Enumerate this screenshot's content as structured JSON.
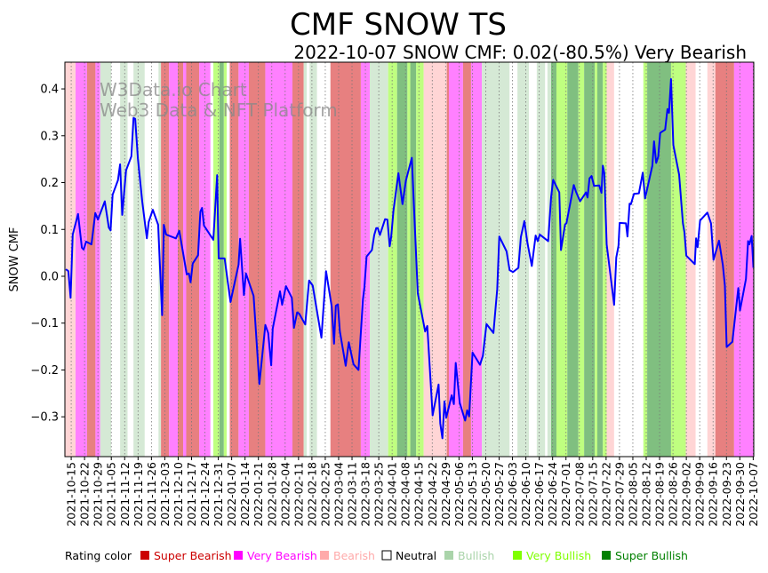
{
  "chart_data": {
    "type": "line",
    "title": "CMF SNOW TS",
    "subtitle": "2022-10-07 SNOW CMF: 0.02(-80.5%) Very Bearish",
    "ylabel": "SNOW CMF",
    "xlabel": "",
    "watermark": [
      "W3Data.io Chart",
      "Web3 Data & NFT Platform"
    ],
    "x_unit": "days since 2021-10-12",
    "xlim": [
      -0.3,
      360.3
    ],
    "ylim": [
      -0.385,
      0.457
    ],
    "yticks": [
      0.4,
      0.3,
      0.2,
      0.1,
      0.0,
      -0.1,
      -0.2,
      -0.3
    ],
    "ytick_labels": [
      "0.4",
      "0.3",
      "0.2",
      "0.1",
      "0.0",
      "−0.1",
      "−0.2",
      "−0.3"
    ],
    "xtick_first_day": 3,
    "xtick_step_days": 7,
    "xtick_labels": [
      "2021-10-15",
      "2021-10-22",
      "2021-10-29",
      "2021-11-05",
      "2021-11-12",
      "2021-11-19",
      "2021-11-26",
      "2021-12-03",
      "2021-12-10",
      "2021-12-17",
      "2021-12-24",
      "2021-12-31",
      "2022-01-07",
      "2022-01-14",
      "2022-01-21",
      "2022-01-28",
      "2022-02-04",
      "2022-02-11",
      "2022-02-18",
      "2022-02-25",
      "2022-03-04",
      "2022-03-11",
      "2022-03-18",
      "2022-03-25",
      "2022-04-01",
      "2022-04-08",
      "2022-04-15",
      "2022-04-22",
      "2022-04-29",
      "2022-05-06",
      "2022-05-13",
      "2022-05-20",
      "2022-05-27",
      "2022-06-03",
      "2022-06-10",
      "2022-06-17",
      "2022-06-24",
      "2022-07-01",
      "2022-07-08",
      "2022-07-15",
      "2022-07-22",
      "2022-07-29",
      "2022-08-05",
      "2022-08-12",
      "2022-08-19",
      "2022-08-26",
      "2022-09-02",
      "2022-09-09",
      "2022-09-16",
      "2022-09-23",
      "2022-09-30",
      "2022-10-07"
    ],
    "grid": "vertical dotted",
    "series": [
      {
        "name": "SNOW CMF",
        "color": "#0000ff",
        "points": [
          [
            0.2,
            0.015
          ],
          [
            1.5,
            0.011
          ],
          [
            2.7,
            -0.046
          ],
          [
            3.8,
            0.089
          ],
          [
            6.6,
            0.133
          ],
          [
            8.6,
            0.061
          ],
          [
            9.5,
            0.057
          ],
          [
            10.8,
            0.074
          ],
          [
            13.6,
            0.068
          ],
          [
            15.6,
            0.135
          ],
          [
            17.0,
            0.121
          ],
          [
            20.6,
            0.16
          ],
          [
            22.7,
            0.104
          ],
          [
            23.6,
            0.098
          ],
          [
            24.7,
            0.174
          ],
          [
            27.5,
            0.205
          ],
          [
            28.6,
            0.239
          ],
          [
            29.7,
            0.131
          ],
          [
            31.7,
            0.226
          ],
          [
            34.5,
            0.256
          ],
          [
            35.6,
            0.338
          ],
          [
            36.5,
            0.336
          ],
          [
            37.9,
            0.252
          ],
          [
            40.2,
            0.16
          ],
          [
            42.6,
            0.081
          ],
          [
            43.6,
            0.116
          ],
          [
            45.7,
            0.142
          ],
          [
            48.5,
            0.11
          ],
          [
            50.6,
            -0.083
          ],
          [
            51.5,
            0.11
          ],
          [
            52.7,
            0.089
          ],
          [
            57.8,
            0.081
          ],
          [
            59.6,
            0.097
          ],
          [
            63.5,
            0.004
          ],
          [
            64.6,
            0.006
          ],
          [
            65.5,
            -0.013
          ],
          [
            66.6,
            0.027
          ],
          [
            69.4,
            0.045
          ],
          [
            70.6,
            0.138
          ],
          [
            71.5,
            0.146
          ],
          [
            72.5,
            0.108
          ],
          [
            77.4,
            0.078
          ],
          [
            79.4,
            0.216
          ],
          [
            80.2,
            0.038
          ],
          [
            83.3,
            0.038
          ],
          [
            86.4,
            -0.055
          ],
          [
            90.6,
            0.025
          ],
          [
            91.4,
            0.08
          ],
          [
            93.4,
            -0.04
          ],
          [
            94.5,
            0.006
          ],
          [
            98.5,
            -0.042
          ],
          [
            101.5,
            -0.23
          ],
          [
            104.6,
            -0.104
          ],
          [
            106.1,
            -0.121
          ],
          [
            107.7,
            -0.19
          ],
          [
            108.5,
            -0.112
          ],
          [
            112.3,
            -0.032
          ],
          [
            113.4,
            -0.061
          ],
          [
            115.4,
            -0.021
          ],
          [
            118.5,
            -0.046
          ],
          [
            119.6,
            -0.11
          ],
          [
            121.3,
            -0.077
          ],
          [
            122.4,
            -0.08
          ],
          [
            125.5,
            -0.103
          ],
          [
            127.5,
            -0.009
          ],
          [
            129.4,
            -0.02
          ],
          [
            134.0,
            -0.131
          ],
          [
            136.4,
            0.011
          ],
          [
            139.4,
            -0.065
          ],
          [
            140.6,
            -0.144
          ],
          [
            141.5,
            -0.063
          ],
          [
            142.6,
            -0.06
          ],
          [
            143.6,
            -0.117
          ],
          [
            146.7,
            -0.191
          ],
          [
            148.3,
            -0.141
          ],
          [
            150.8,
            -0.188
          ],
          [
            153.4,
            -0.2
          ],
          [
            155.7,
            -0.05
          ],
          [
            156.5,
            -0.023
          ],
          [
            157.6,
            0.042
          ],
          [
            160.4,
            0.056
          ],
          [
            161.6,
            0.088
          ],
          [
            162.7,
            0.103
          ],
          [
            163.5,
            0.103
          ],
          [
            164.6,
            0.088
          ],
          [
            167.3,
            0.122
          ],
          [
            168.5,
            0.121
          ],
          [
            169.7,
            0.064
          ],
          [
            170.5,
            0.084
          ],
          [
            171.7,
            0.141
          ],
          [
            174.3,
            0.22
          ],
          [
            176.4,
            0.154
          ],
          [
            178.2,
            0.204
          ],
          [
            181.3,
            0.253
          ],
          [
            184.4,
            -0.036
          ],
          [
            188.3,
            -0.118
          ],
          [
            189.4,
            -0.106
          ],
          [
            192.2,
            -0.297
          ],
          [
            195.3,
            -0.231
          ],
          [
            196.2,
            -0.314
          ],
          [
            197.3,
            -0.346
          ],
          [
            198.4,
            -0.267
          ],
          [
            199.3,
            -0.302
          ],
          [
            202.2,
            -0.254
          ],
          [
            203.3,
            -0.273
          ],
          [
            204.3,
            -0.185
          ],
          [
            206.4,
            -0.27
          ],
          [
            209.2,
            -0.308
          ],
          [
            210.3,
            -0.286
          ],
          [
            211.3,
            -0.299
          ],
          [
            213.1,
            -0.163
          ],
          [
            217.0,
            -0.189
          ],
          [
            218.5,
            -0.17
          ],
          [
            220.4,
            -0.102
          ],
          [
            224.0,
            -0.121
          ],
          [
            226.0,
            -0.027
          ],
          [
            227.1,
            0.085
          ],
          [
            230.9,
            0.053
          ],
          [
            232.5,
            0.013
          ],
          [
            234.3,
            0.009
          ],
          [
            237.1,
            0.018
          ],
          [
            238.4,
            0.084
          ],
          [
            240.2,
            0.118
          ],
          [
            241.8,
            0.072
          ],
          [
            244.1,
            0.022
          ],
          [
            246.1,
            0.087
          ],
          [
            247.2,
            0.075
          ],
          [
            248.3,
            0.089
          ],
          [
            252.7,
            0.075
          ],
          [
            254.2,
            0.169
          ],
          [
            255.3,
            0.206
          ],
          [
            258.5,
            0.179
          ],
          [
            259.4,
            0.056
          ],
          [
            261.5,
            0.111
          ],
          [
            262.2,
            0.113
          ],
          [
            266.1,
            0.195
          ],
          [
            267.3,
            0.18
          ],
          [
            269.4,
            0.16
          ],
          [
            272.5,
            0.179
          ],
          [
            273.3,
            0.168
          ],
          [
            274.3,
            0.209
          ],
          [
            275.4,
            0.214
          ],
          [
            276.7,
            0.193
          ],
          [
            279.4,
            0.194
          ],
          [
            280.6,
            0.178
          ],
          [
            281.3,
            0.236
          ],
          [
            282.1,
            0.22
          ],
          [
            283.3,
            0.068
          ],
          [
            287.2,
            -0.061
          ],
          [
            288.3,
            0.04
          ],
          [
            289.5,
            0.065
          ],
          [
            290.1,
            0.114
          ],
          [
            293.4,
            0.113
          ],
          [
            294.2,
            0.085
          ],
          [
            295.3,
            0.155
          ],
          [
            296.0,
            0.154
          ],
          [
            297.6,
            0.176
          ],
          [
            300.2,
            0.177
          ],
          [
            302.2,
            0.221
          ],
          [
            303.4,
            0.166
          ],
          [
            307.2,
            0.236
          ],
          [
            308.1,
            0.288
          ],
          [
            309.2,
            0.242
          ],
          [
            310.3,
            0.255
          ],
          [
            311.3,
            0.306
          ],
          [
            313.9,
            0.313
          ],
          [
            315.1,
            0.357
          ],
          [
            315.9,
            0.349
          ],
          [
            317.0,
            0.421
          ],
          [
            318.2,
            0.28
          ],
          [
            321.2,
            0.217
          ],
          [
            323.2,
            0.113
          ],
          [
            324.0,
            0.094
          ],
          [
            325.0,
            0.044
          ],
          [
            329.4,
            0.026
          ],
          [
            330.1,
            0.081
          ],
          [
            330.9,
            0.062
          ],
          [
            332.2,
            0.119
          ],
          [
            336.0,
            0.136
          ],
          [
            337.9,
            0.113
          ],
          [
            339.2,
            0.035
          ],
          [
            342.1,
            0.076
          ],
          [
            344.1,
            0.024
          ],
          [
            345.2,
            -0.02
          ],
          [
            346.1,
            -0.151
          ],
          [
            349.1,
            -0.14
          ],
          [
            352.2,
            -0.025
          ],
          [
            353.1,
            -0.073
          ],
          [
            356.2,
            -0.006
          ],
          [
            357.3,
            0.075
          ],
          [
            358.0,
            0.068
          ],
          [
            359.2,
            0.086
          ],
          [
            360.1,
            0.018
          ]
        ]
      }
    ],
    "rating_bands": [
      [
        -0.3,
        5.3,
        "B"
      ],
      [
        5.3,
        11.3,
        "VB"
      ],
      [
        11.3,
        15.7,
        "SB"
      ],
      [
        15.7,
        18.2,
        "VB"
      ],
      [
        18.2,
        24,
        "BU"
      ],
      [
        24,
        28.6,
        "N"
      ],
      [
        28.6,
        32.5,
        "BU"
      ],
      [
        32.5,
        35.6,
        "N"
      ],
      [
        35.6,
        41.5,
        "BU"
      ],
      [
        41.5,
        48.7,
        "N"
      ],
      [
        48.7,
        50,
        "BU"
      ],
      [
        50,
        54.2,
        "SB"
      ],
      [
        54.2,
        58.8,
        "VB"
      ],
      [
        58.8,
        61.6,
        "SB"
      ],
      [
        61.6,
        63.2,
        "VB"
      ],
      [
        63.2,
        70,
        "SB"
      ],
      [
        70,
        75.9,
        "VB"
      ],
      [
        75.9,
        77.4,
        "N"
      ],
      [
        77.4,
        80.6,
        "VBU"
      ],
      [
        80.6,
        82.9,
        "SBU"
      ],
      [
        82.9,
        84.4,
        "VBU"
      ],
      [
        84.4,
        86,
        "N"
      ],
      [
        86,
        90.6,
        "SB"
      ],
      [
        90.6,
        96,
        "VB"
      ],
      [
        96,
        104.6,
        "SB"
      ],
      [
        104.6,
        118.8,
        "VB"
      ],
      [
        118.8,
        124.7,
        "SB"
      ],
      [
        124.7,
        126.3,
        "BU"
      ],
      [
        126.3,
        127.8,
        "N"
      ],
      [
        127.8,
        131.7,
        "BU"
      ],
      [
        131.7,
        138.7,
        "N"
      ],
      [
        138.7,
        154.6,
        "SB"
      ],
      [
        154.6,
        159.3,
        "VB"
      ],
      [
        159.3,
        168.9,
        "BU"
      ],
      [
        168.9,
        173.6,
        "VBU"
      ],
      [
        173.6,
        179,
        "SBU"
      ],
      [
        179,
        180.5,
        "VBU"
      ],
      [
        180.5,
        183.6,
        "SBU"
      ],
      [
        183.6,
        187.5,
        "VBU"
      ],
      [
        187.5,
        199.6,
        "B"
      ],
      [
        199.6,
        200.7,
        "SB"
      ],
      [
        200.7,
        208.1,
        "VB"
      ],
      [
        208.1,
        212.3,
        "SB"
      ],
      [
        212.3,
        218,
        "VB"
      ],
      [
        218,
        232.5,
        "BU"
      ],
      [
        232.5,
        236.6,
        "N"
      ],
      [
        236.6,
        242.6,
        "BU"
      ],
      [
        242.6,
        246.7,
        "N"
      ],
      [
        246.7,
        251.1,
        "BU"
      ],
      [
        251.1,
        252.3,
        "N"
      ],
      [
        252.3,
        254.2,
        "BU"
      ],
      [
        254.2,
        257,
        "SBU"
      ],
      [
        257,
        262.7,
        "VBU"
      ],
      [
        262.7,
        268.5,
        "SBU"
      ],
      [
        268.5,
        271.5,
        "VBU"
      ],
      [
        271.5,
        277.1,
        "SBU"
      ],
      [
        277.1,
        278.4,
        "VBU"
      ],
      [
        278.4,
        281.3,
        "SBU"
      ],
      [
        281.3,
        283.3,
        "VBU"
      ],
      [
        283.3,
        287.2,
        "B"
      ],
      [
        287.2,
        302.5,
        "N"
      ],
      [
        302.5,
        304.5,
        "VBU"
      ],
      [
        304.5,
        317,
        "SBU"
      ],
      [
        317,
        324.7,
        "VBU"
      ],
      [
        324.7,
        329.9,
        "B"
      ],
      [
        329.9,
        336,
        "N"
      ],
      [
        336,
        340.2,
        "B"
      ],
      [
        340.2,
        350,
        "SB"
      ],
      [
        350,
        360.3,
        "VB"
      ]
    ],
    "legend": {
      "title": "Rating color",
      "placement": "bottom",
      "items": [
        {
          "key": "SB",
          "label": "Super Bearish",
          "color": "#cc0000",
          "band": "#e78080"
        },
        {
          "key": "VB",
          "label": "Very Bearish",
          "color": "#ff00ff",
          "band": "#ff80ff"
        },
        {
          "key": "B",
          "label": "Bearish",
          "color": "#ffaaaa",
          "band": "#ffd5d5"
        },
        {
          "key": "N",
          "label": "Neutral",
          "color": "#ffffff",
          "band": "#ffffff"
        },
        {
          "key": "BU",
          "label": "Bullish",
          "color": "#aad4aa",
          "band": "#d5e9d5"
        },
        {
          "key": "VBU",
          "label": "Very Bullish",
          "color": "#7fff00",
          "band": "#bfff80"
        },
        {
          "key": "SBU",
          "label": "Super Bullish",
          "color": "#008000",
          "band": "#80bf80"
        }
      ]
    }
  }
}
